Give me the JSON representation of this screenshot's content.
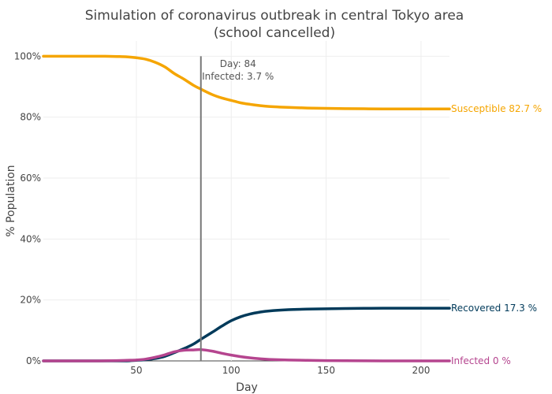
{
  "chart_data": {
    "type": "line",
    "title_line1": "Simulation of coronavirus outbreak in central Tokyo area",
    "title_line2": "(school cancelled)",
    "xlabel": "Day",
    "ylabel": "% Population",
    "xlim": [
      1,
      215
    ],
    "ylim": [
      0,
      105
    ],
    "x_ticks": [
      50,
      100,
      150,
      200
    ],
    "y_ticks": [
      0,
      20,
      40,
      60,
      80,
      100
    ],
    "y_tick_labels": [
      "0%",
      "20%",
      "40%",
      "60%",
      "80%",
      "100%"
    ],
    "grid": true,
    "x": [
      1,
      10,
      20,
      30,
      40,
      45,
      50,
      55,
      60,
      65,
      70,
      75,
      80,
      84,
      90,
      95,
      100,
      105,
      110,
      115,
      120,
      130,
      140,
      150,
      160,
      170,
      180,
      190,
      200,
      215
    ],
    "series": [
      {
        "name": "Susceptible",
        "color": "#f5a500",
        "end_label": "Susceptible  82.7 %",
        "values": [
          100,
          100,
          100,
          100,
          99.9,
          99.8,
          99.5,
          99.0,
          98.0,
          96.5,
          94.3,
          92.5,
          90.5,
          89.2,
          87.4,
          86.3,
          85.5,
          84.7,
          84.2,
          83.8,
          83.5,
          83.2,
          83.0,
          82.9,
          82.8,
          82.75,
          82.7,
          82.7,
          82.7,
          82.7
        ]
      },
      {
        "name": "Recovered",
        "color": "#003a5a",
        "end_label": "Recovered  17.3 %",
        "values": [
          0,
          0,
          0,
          0,
          0,
          0,
          0.2,
          0.4,
          0.8,
          1.5,
          2.7,
          4.0,
          5.5,
          7.1,
          9.4,
          11.4,
          13.2,
          14.5,
          15.4,
          16.0,
          16.4,
          16.8,
          17.0,
          17.1,
          17.2,
          17.25,
          17.3,
          17.3,
          17.3,
          17.3
        ]
      },
      {
        "name": "Infected",
        "color": "#b5458f",
        "end_label": "Infected  0 %",
        "values": [
          0,
          0,
          0,
          0,
          0.1,
          0.2,
          0.3,
          0.6,
          1.2,
          2.0,
          3.0,
          3.5,
          3.6,
          3.7,
          3.2,
          2.5,
          1.9,
          1.4,
          1.0,
          0.7,
          0.5,
          0.3,
          0.2,
          0.1,
          0.05,
          0.02,
          0,
          0,
          0,
          0
        ]
      }
    ],
    "annotation": {
      "day_value": 84,
      "day_text": "Day:  84",
      "infected_text": "Infected:  3.7 %",
      "line_color": "#777777"
    }
  }
}
